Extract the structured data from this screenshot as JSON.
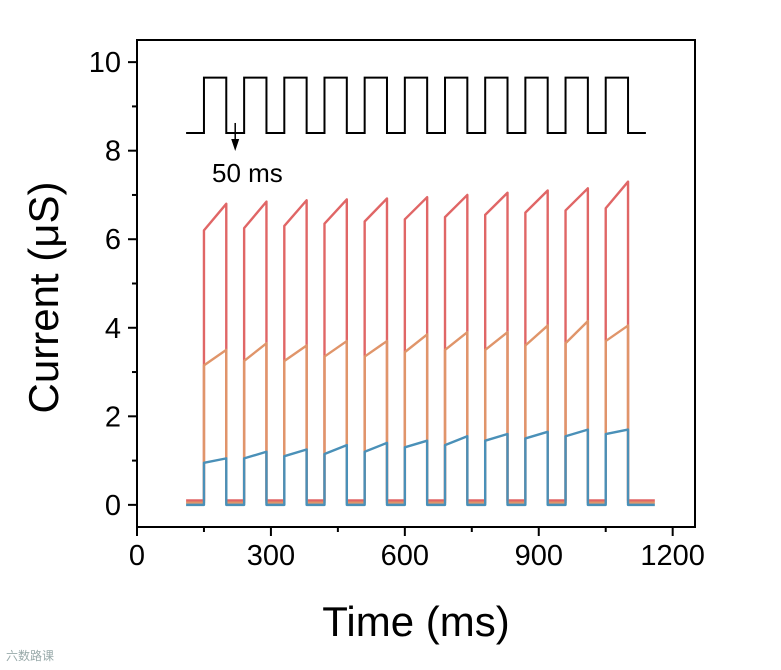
{
  "chart_data": {
    "type": "line",
    "xlabel": "Time (ms)",
    "ylabel": "Current (μS)",
    "xlim": [
      0,
      1250
    ],
    "ylim": [
      -0.5,
      10.5
    ],
    "xticks": [
      0,
      300,
      600,
      900,
      1200
    ],
    "yticks": [
      0,
      2,
      4,
      6,
      8,
      10
    ],
    "grid": false,
    "annotation": "50 ms",
    "pulse": {
      "start_ms": 150,
      "period_ms": 90,
      "width_ms": 50,
      "count": 11,
      "trace_range_ms": [
        110,
        1160
      ],
      "pulse_train_levels": [
        8.4,
        9.65
      ]
    },
    "series": [
      {
        "color": "#e06666",
        "baseline": 0.1,
        "pulses": [
          [
            6.2,
            6.8
          ],
          [
            6.25,
            6.85
          ],
          [
            6.3,
            6.88
          ],
          [
            6.35,
            6.9
          ],
          [
            6.4,
            6.92
          ],
          [
            6.45,
            6.95
          ],
          [
            6.5,
            7.0
          ],
          [
            6.55,
            7.05
          ],
          [
            6.6,
            7.1
          ],
          [
            6.65,
            7.15
          ],
          [
            6.7,
            7.3
          ]
        ]
      },
      {
        "color": "#e0956a",
        "baseline": 0.05,
        "pulses": [
          [
            3.15,
            3.5
          ],
          [
            3.25,
            3.65
          ],
          [
            3.25,
            3.6
          ],
          [
            3.35,
            3.7
          ],
          [
            3.35,
            3.7
          ],
          [
            3.45,
            3.85
          ],
          [
            3.5,
            3.9
          ],
          [
            3.5,
            3.9
          ],
          [
            3.6,
            4.05
          ],
          [
            3.65,
            4.15
          ],
          [
            3.7,
            4.05
          ]
        ]
      },
      {
        "color": "#4a90b8",
        "baseline": 0.0,
        "pulses": [
          [
            0.95,
            1.05
          ],
          [
            1.05,
            1.2
          ],
          [
            1.1,
            1.25
          ],
          [
            1.15,
            1.35
          ],
          [
            1.2,
            1.4
          ],
          [
            1.3,
            1.45
          ],
          [
            1.35,
            1.55
          ],
          [
            1.45,
            1.6
          ],
          [
            1.5,
            1.65
          ],
          [
            1.55,
            1.7
          ],
          [
            1.6,
            1.7
          ]
        ]
      }
    ]
  },
  "watermark": "六数路课"
}
